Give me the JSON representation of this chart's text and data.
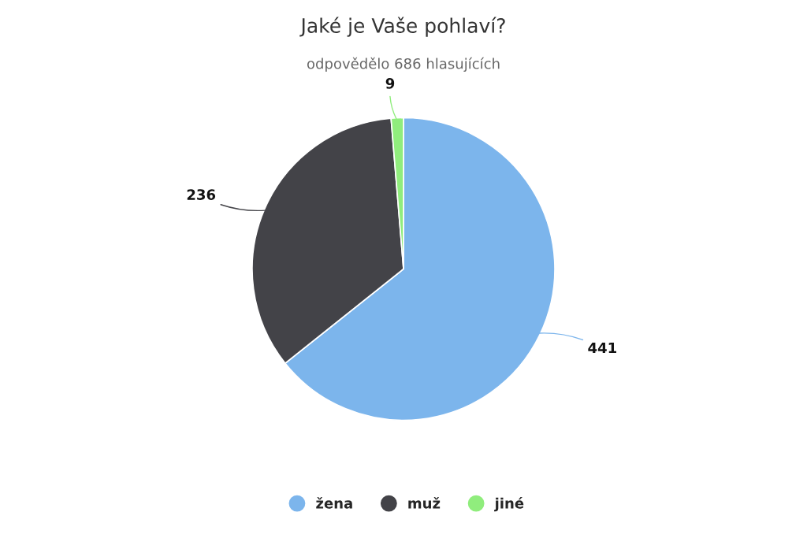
{
  "chart_data": {
    "type": "pie",
    "title": "Jaké je Vaše pohlaví?",
    "subtitle": "odpovědělo 686 hlasujících",
    "categories": [
      "žena",
      "muž",
      "jiné"
    ],
    "values": [
      441,
      236,
      9
    ],
    "colors": [
      "#7cb5ec",
      "#434348",
      "#90ed7d"
    ],
    "data_labels": true,
    "legend": "bottom"
  }
}
